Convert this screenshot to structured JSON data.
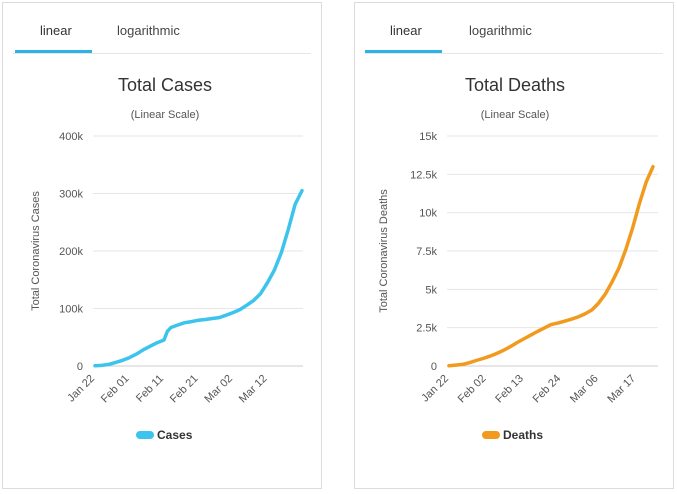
{
  "panels": [
    {
      "tabs": {
        "linear_label": "linear",
        "log_label": "logarithmic"
      },
      "chart_data": {
        "type": "line",
        "title": "Total Cases",
        "subtitle": "(Linear Scale)",
        "ylabel": "Total Coronavirus Cases",
        "xlabel": "",
        "ylim": [
          0,
          400000
        ],
        "y_ticks": [
          0,
          100000,
          200000,
          300000,
          400000
        ],
        "y_tick_labels": [
          "0",
          "100k",
          "200k",
          "300k",
          "400k"
        ],
        "x_start_day": 0,
        "x_end_day": 60,
        "x_ticks": [
          0,
          10,
          20,
          30,
          40,
          50
        ],
        "x_tick_labels": [
          "Jan 22",
          "Feb 01",
          "Feb 11",
          "Feb 21",
          "Mar 02",
          "Mar 12"
        ],
        "series": [
          {
            "name": "Cases",
            "color": "#3cc4ed",
            "x": [
              0,
              2,
              4,
              6,
              8,
              10,
              12,
              14,
              16,
              18,
              20,
              21,
              22,
              24,
              26,
              28,
              30,
              32,
              34,
              36,
              38,
              40,
              42,
              44,
              46,
              48,
              50,
              52,
              54,
              56,
              58,
              60
            ],
            "values": [
              555,
              1100,
              2800,
              6200,
              9900,
              14600,
              20700,
              28100,
              34500,
              40600,
              45200,
              60400,
              66900,
              71300,
              75300,
              77300,
              79600,
              80800,
              82600,
              84100,
              88400,
              92800,
              98000,
              105800,
              114000,
              125900,
              145000,
              167000,
              197000,
              237000,
              281000,
              305000
            ]
          }
        ]
      }
    },
    {
      "tabs": {
        "linear_label": "linear",
        "log_label": "logarithmic"
      },
      "chart_data": {
        "type": "line",
        "title": "Total Deaths",
        "subtitle": "(Linear Scale)",
        "ylabel": "Total Coronavirus Deaths",
        "xlabel": "",
        "ylim": [
          0,
          15000
        ],
        "y_ticks": [
          0,
          2500,
          5000,
          7500,
          10000,
          12500,
          15000
        ],
        "y_tick_labels": [
          "0",
          "2.5k",
          "5k",
          "7.5k",
          "10k",
          "12.5k",
          "15k"
        ],
        "x_start_day": 0,
        "x_end_day": 60,
        "x_ticks": [
          0,
          11,
          22,
          33,
          44,
          55
        ],
        "x_tick_labels": [
          "Jan 22",
          "Feb 02",
          "Feb 13",
          "Feb 24",
          "Mar 06",
          "Mar 17"
        ],
        "series": [
          {
            "name": "Deaths",
            "color": "#f19a1e",
            "x": [
              0,
              2,
              4,
              6,
              8,
              10,
              12,
              14,
              16,
              18,
              20,
              22,
              24,
              26,
              28,
              30,
              32,
              34,
              36,
              38,
              40,
              42,
              44,
              46,
              48,
              50,
              52,
              54,
              56,
              58,
              60
            ],
            "values": [
              17,
              56,
              106,
              213,
              361,
              492,
              638,
              813,
              1018,
              1260,
              1523,
              1770,
              2010,
              2250,
              2470,
              2700,
              2800,
              2920,
              3050,
              3200,
              3400,
              3650,
              4100,
              4700,
              5500,
              6400,
              7600,
              9000,
              10600,
              12000,
              13000
            ]
          }
        ]
      }
    }
  ]
}
